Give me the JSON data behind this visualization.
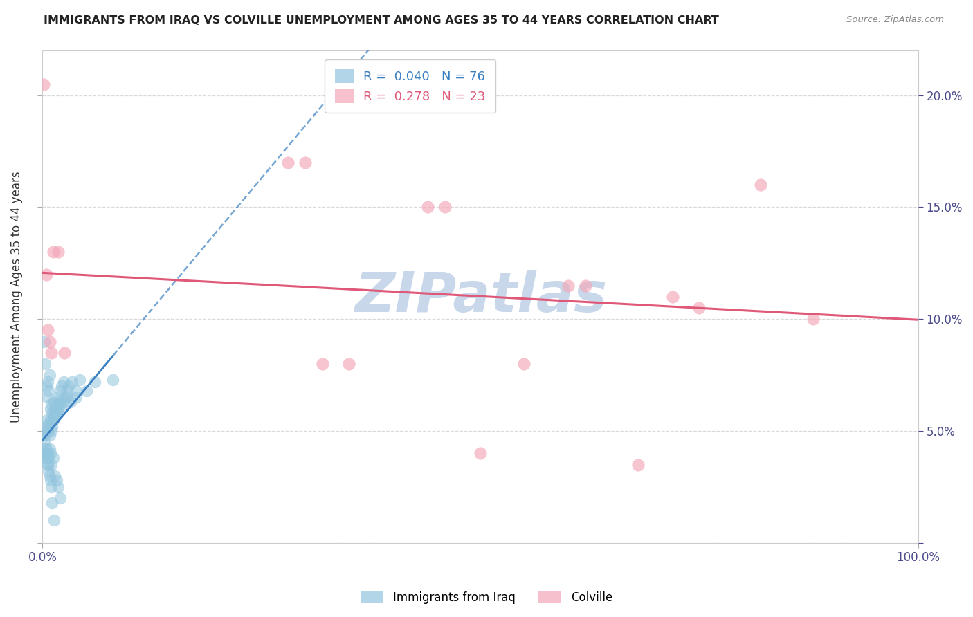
{
  "title": "IMMIGRANTS FROM IRAQ VS COLVILLE UNEMPLOYMENT AMONG AGES 35 TO 44 YEARS CORRELATION CHART",
  "source": "Source: ZipAtlas.com",
  "ylabel": "Unemployment Among Ages 35 to 44 years",
  "xlim": [
    0,
    1.0
  ],
  "ylim": [
    0,
    0.22
  ],
  "yticks": [
    0.0,
    0.05,
    0.1,
    0.15,
    0.2
  ],
  "yticklabels_right": [
    "",
    "5.0%",
    "10.0%",
    "15.0%",
    "20.0%"
  ],
  "iraq_R": 0.04,
  "iraq_N": 76,
  "colville_R": 0.278,
  "colville_N": 23,
  "iraq_color": "#92c5de",
  "colville_color": "#f4a6b8",
  "iraq_line_color": "#3a7fc1",
  "colville_line_color": "#e05878",
  "background_color": "#ffffff",
  "grid_color": "#d0d0d0",
  "title_color": "#222222",
  "axis_label_color": "#333333",
  "tick_color": "#4a4a8a",
  "watermark": "ZIPatlas",
  "watermark_color": "#c8d8ea",
  "iraq_x": [
    0.002,
    0.003,
    0.004,
    0.005,
    0.006,
    0.007,
    0.008,
    0.009,
    0.01,
    0.011,
    0.012,
    0.013,
    0.014,
    0.015,
    0.016,
    0.017,
    0.018,
    0.019,
    0.02,
    0.022,
    0.024,
    0.026,
    0.028,
    0.03,
    0.034,
    0.038,
    0.042,
    0.05,
    0.06,
    0.08,
    0.002,
    0.003,
    0.004,
    0.005,
    0.006,
    0.007,
    0.008,
    0.009,
    0.01,
    0.011,
    0.012,
    0.013,
    0.015,
    0.018,
    0.02,
    0.022,
    0.025,
    0.028,
    0.032,
    0.038,
    0.002,
    0.003,
    0.004,
    0.005,
    0.006,
    0.007,
    0.008,
    0.009,
    0.01,
    0.012,
    0.014,
    0.016,
    0.018,
    0.02,
    0.001,
    0.002,
    0.003,
    0.004,
    0.005,
    0.006,
    0.007,
    0.008,
    0.009,
    0.01,
    0.011,
    0.013
  ],
  "iraq_y": [
    0.09,
    0.08,
    0.07,
    0.065,
    0.072,
    0.068,
    0.075,
    0.06,
    0.062,
    0.058,
    0.055,
    0.063,
    0.06,
    0.058,
    0.062,
    0.059,
    0.065,
    0.063,
    0.068,
    0.07,
    0.072,
    0.065,
    0.068,
    0.07,
    0.072,
    0.068,
    0.073,
    0.068,
    0.072,
    0.073,
    0.05,
    0.048,
    0.052,
    0.055,
    0.05,
    0.053,
    0.048,
    0.055,
    0.05,
    0.052,
    0.055,
    0.058,
    0.057,
    0.06,
    0.062,
    0.06,
    0.063,
    0.065,
    0.063,
    0.065,
    0.04,
    0.038,
    0.042,
    0.04,
    0.035,
    0.038,
    0.042,
    0.04,
    0.035,
    0.038,
    0.03,
    0.028,
    0.025,
    0.02,
    0.048,
    0.045,
    0.042,
    0.04,
    0.038,
    0.035,
    0.032,
    0.03,
    0.028,
    0.025,
    0.018,
    0.01
  ],
  "colville_x": [
    0.001,
    0.004,
    0.006,
    0.008,
    0.01,
    0.012,
    0.018,
    0.025,
    0.28,
    0.3,
    0.32,
    0.35,
    0.44,
    0.46,
    0.5,
    0.55,
    0.6,
    0.62,
    0.68,
    0.72,
    0.75,
    0.82,
    0.88
  ],
  "colville_y": [
    0.205,
    0.12,
    0.095,
    0.09,
    0.085,
    0.13,
    0.13,
    0.085,
    0.17,
    0.17,
    0.08,
    0.08,
    0.15,
    0.15,
    0.04,
    0.08,
    0.115,
    0.115,
    0.035,
    0.11,
    0.105,
    0.16,
    0.1
  ]
}
